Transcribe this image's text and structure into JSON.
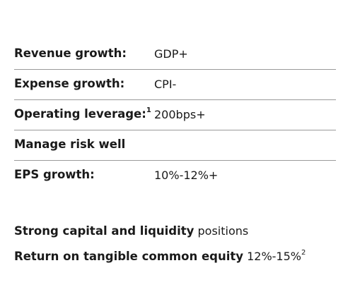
{
  "targets": [
    {
      "label": "Revenue growth:",
      "label_sup": "",
      "value": "GDP+"
    },
    {
      "label": "Expense growth:",
      "label_sup": "",
      "value": "CPI-"
    },
    {
      "label": "Operating leverage:",
      "label_sup": "1",
      "value": "200bps+"
    },
    {
      "label": "Manage risk well",
      "label_sup": "",
      "value": ""
    },
    {
      "label": "EPS growth:",
      "label_sup": "",
      "value": "10%-12%+"
    }
  ],
  "summary": [
    {
      "strong": "Strong capital and liquidity",
      "rest": " positions",
      "sup": ""
    },
    {
      "strong": "Return on tangible common equity",
      "rest": " 12%-15%",
      "sup": "2"
    }
  ]
}
